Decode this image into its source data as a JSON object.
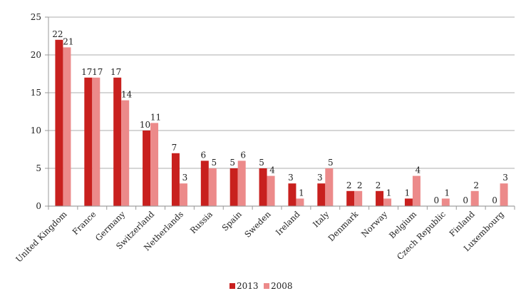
{
  "chart_data": {
    "type": "bar",
    "title": "",
    "xlabel": "",
    "ylabel": "",
    "ylim": [
      0,
      25
    ],
    "yticks": [
      0,
      5,
      10,
      15,
      20,
      25
    ],
    "grid": true,
    "legend_position": "bottom",
    "categories": [
      "United Kingdom",
      "France",
      "Germany",
      "Switzerland",
      "Netherlands",
      "Russia",
      "Spain",
      "Sweden",
      "Ireland",
      "Italy",
      "Denmark",
      "Norway",
      "Belgium",
      "Czech Republic",
      "Finland",
      "Luxembourg"
    ],
    "series": [
      {
        "name": "2013",
        "color": "#c8201e",
        "values": [
          22,
          17,
          17,
          10,
          7,
          6,
          5,
          5,
          3,
          3,
          2,
          2,
          1,
          0,
          0,
          0
        ]
      },
      {
        "name": "2008",
        "color": "#ec8a8a",
        "values": [
          21,
          17,
          14,
          11,
          3,
          5,
          6,
          4,
          1,
          5,
          2,
          1,
          4,
          1,
          2,
          3
        ]
      }
    ]
  }
}
